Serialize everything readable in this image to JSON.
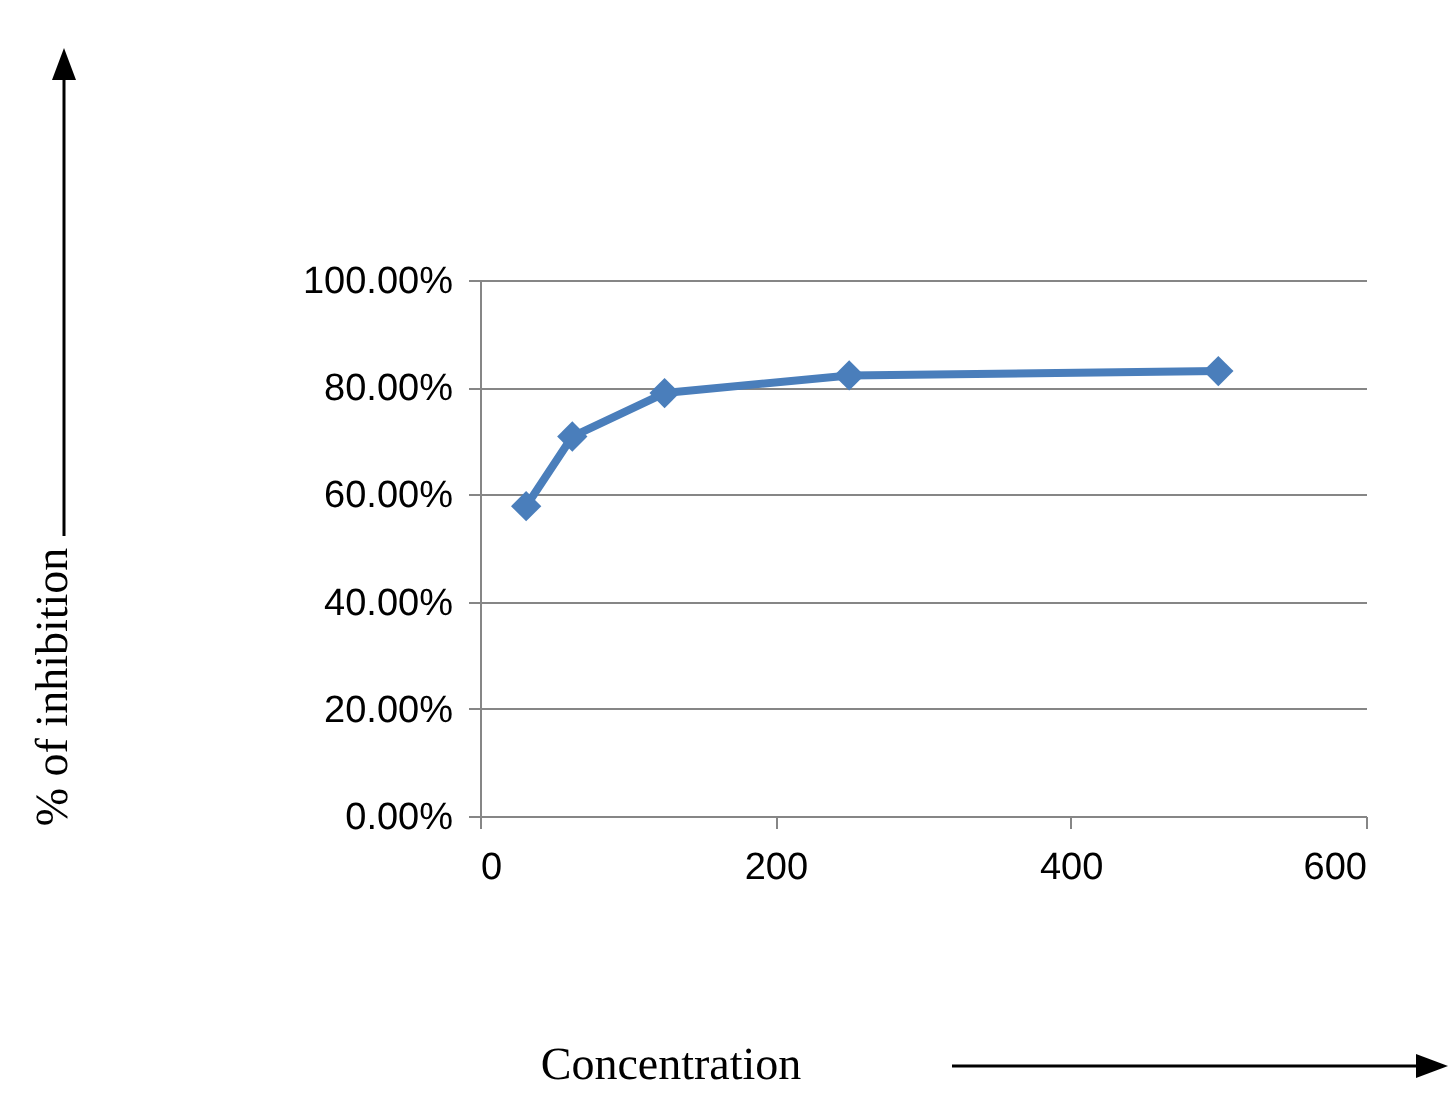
{
  "chart_data": {
    "type": "line",
    "xlabel": "Concentration",
    "ylabel": "% of inhibition",
    "x": [
      31.25,
      62.5,
      125,
      250,
      500
    ],
    "series": [
      {
        "color": "#4a7ebb",
        "values": [
          57.8,
          70.8,
          78.9,
          82.2,
          83
        ]
      }
    ],
    "xlim": [
      0,
      600
    ],
    "xticks": [
      0,
      200,
      400,
      600
    ],
    "ylim": [
      0,
      100
    ],
    "yticks": [
      {
        "value": 0,
        "label": "0.00%"
      },
      {
        "value": 20,
        "label": "20.00%"
      },
      {
        "value": 40,
        "label": "40.00%"
      },
      {
        "value": 60,
        "label": "60.00%"
      },
      {
        "value": 80,
        "label": "80.00%"
      },
      {
        "value": 100,
        "label": "100.00%"
      }
    ],
    "grid": "y",
    "marker": "diamond",
    "line_style": "solid"
  }
}
